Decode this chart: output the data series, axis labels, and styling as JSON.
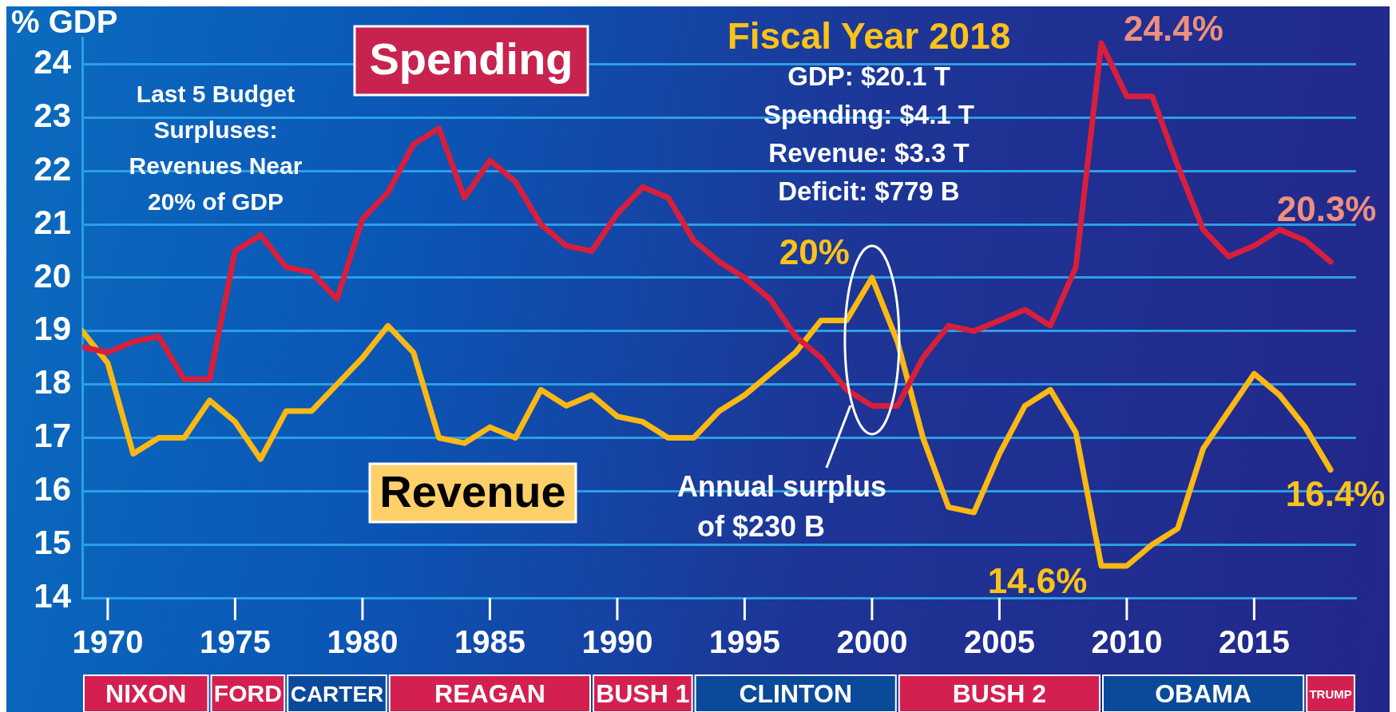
{
  "chart_data": {
    "type": "line",
    "ylabel": "% GDP",
    "x": [
      1969,
      1970,
      1971,
      1972,
      1973,
      1974,
      1975,
      1976,
      1977,
      1978,
      1979,
      1980,
      1981,
      1982,
      1983,
      1984,
      1985,
      1986,
      1987,
      1988,
      1989,
      1990,
      1991,
      1992,
      1993,
      1994,
      1995,
      1996,
      1997,
      1998,
      1999,
      2000,
      2001,
      2002,
      2003,
      2004,
      2005,
      2006,
      2007,
      2008,
      2009,
      2010,
      2011,
      2012,
      2013,
      2014,
      2015,
      2016,
      2017,
      2018
    ],
    "series": [
      {
        "name": "Spending",
        "color": "#d91e3c",
        "values": [
          18.7,
          18.6,
          18.8,
          18.9,
          18.1,
          18.1,
          20.5,
          20.8,
          20.2,
          20.1,
          19.6,
          21.1,
          21.6,
          22.5,
          22.8,
          21.5,
          22.2,
          21.8,
          21.0,
          20.6,
          20.5,
          21.2,
          21.7,
          21.5,
          20.7,
          20.3,
          20.0,
          19.6,
          18.9,
          18.5,
          17.9,
          17.6,
          17.6,
          18.5,
          19.1,
          19.0,
          19.2,
          19.4,
          19.1,
          20.2,
          24.4,
          23.4,
          23.4,
          22.1,
          20.9,
          20.4,
          20.6,
          20.9,
          20.7,
          20.3
        ]
      },
      {
        "name": "Revenue",
        "color": "#fbb812",
        "values": [
          19.0,
          18.4,
          16.7,
          17.0,
          17.0,
          17.7,
          17.3,
          16.6,
          17.5,
          17.5,
          18.0,
          18.5,
          19.1,
          18.6,
          17.0,
          16.9,
          17.2,
          17.0,
          17.9,
          17.6,
          17.8,
          17.4,
          17.3,
          17.0,
          17.0,
          17.5,
          17.8,
          18.2,
          18.6,
          19.2,
          19.2,
          20.0,
          18.8,
          17.0,
          15.7,
          15.6,
          16.7,
          17.6,
          17.9,
          17.1,
          14.6,
          14.6,
          15.0,
          15.3,
          16.8,
          17.5,
          18.2,
          17.8,
          17.2,
          16.4
        ]
      }
    ],
    "xlim": [
      1969,
      2019
    ],
    "xticks": [
      1970,
      1975,
      1980,
      1985,
      1990,
      1995,
      2000,
      2005,
      2010,
      2015
    ],
    "ylim": [
      14,
      24.5
    ],
    "yticks": [
      14,
      15,
      16,
      17,
      18,
      19,
      20,
      21,
      22,
      23,
      24
    ],
    "grid": "y",
    "marker": "none",
    "line_style": "solid",
    "annotations": [
      "NIXON",
      "FORD",
      "CARTER",
      "REAGAN",
      "BUSH 1",
      "CLINTON",
      "BUSH 2",
      "OBAMA",
      "TRUMP",
      "Last 5 Budget\nSurpluses:\nRevenues Near\n20% of GDP",
      "Fiscal Year 2018",
      "GDP: $20.1 T\nSpending: $4.1 T\nRevenue: $3.3 T\nDeficit: $779 B",
      "Annual surplus\nof $230 B",
      {
        "text": "24.4%",
        "x": 2009,
        "y": 24.4
      },
      {
        "text": "20.3%",
        "x": 2018,
        "y": 20.3
      },
      {
        "text": "20%",
        "x": 2000,
        "y": 20
      },
      {
        "text": "14.6%",
        "x": 2009,
        "y": 14.6
      },
      {
        "text": "16.4%",
        "x": 2018,
        "y": 16.4
      }
    ]
  }
}
